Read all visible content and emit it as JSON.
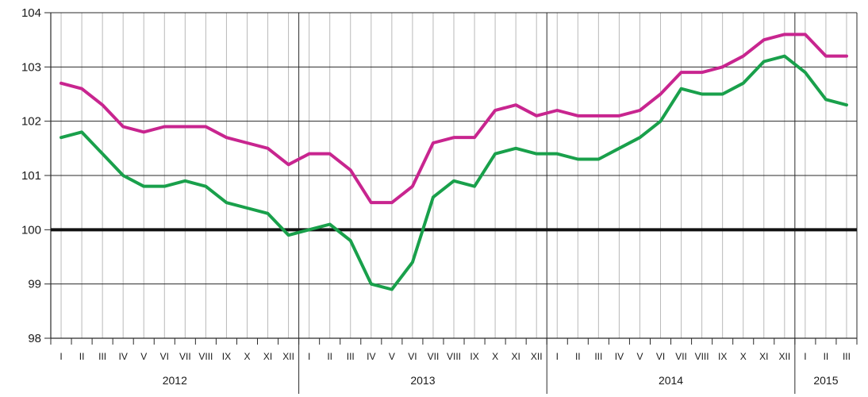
{
  "chart_data": {
    "type": "line",
    "title": "",
    "xlabel": "",
    "ylabel": "",
    "ylim": [
      98,
      104
    ],
    "yticks": [
      98,
      99,
      100,
      101,
      102,
      103,
      104
    ],
    "reference_line": 100,
    "grid": true,
    "x_month_labels": [
      "I",
      "II",
      "III",
      "IV",
      "V",
      "VI",
      "VII",
      "VIII",
      "IX",
      "X",
      "XI",
      "XII",
      "I",
      "II",
      "III",
      "IV",
      "V",
      "VI",
      "VII",
      "VIII",
      "IX",
      "X",
      "XI",
      "XII",
      "I",
      "II",
      "III",
      "IV",
      "V",
      "VI",
      "VII",
      "VIII",
      "IX",
      "X",
      "XI",
      "XII",
      "I",
      "II",
      "III"
    ],
    "x_year_groups": [
      {
        "label": "2012",
        "months": 12
      },
      {
        "label": "2013",
        "months": 12
      },
      {
        "label": "2014",
        "months": 12
      },
      {
        "label": "2015",
        "months": 3
      }
    ],
    "series": [
      {
        "color": "#c8258f",
        "values": [
          102.7,
          102.6,
          102.3,
          101.9,
          101.8,
          101.9,
          101.9,
          101.9,
          101.7,
          101.6,
          101.5,
          101.2,
          101.4,
          101.4,
          101.1,
          100.5,
          100.5,
          100.8,
          101.6,
          101.7,
          101.7,
          102.2,
          102.3,
          102.1,
          102.2,
          102.1,
          102.1,
          102.1,
          102.2,
          102.5,
          102.9,
          102.9,
          103.0,
          103.2,
          103.5,
          103.6,
          103.6,
          103.2,
          103.2
        ]
      },
      {
        "color": "#19a04b",
        "values": [
          101.7,
          101.8,
          101.4,
          101.0,
          100.8,
          100.8,
          100.9,
          100.8,
          100.5,
          100.4,
          100.3,
          99.9,
          100.0,
          100.1,
          99.8,
          99.0,
          98.9,
          99.4,
          100.6,
          100.9,
          100.8,
          101.4,
          101.5,
          101.4,
          101.4,
          101.3,
          101.3,
          101.5,
          101.7,
          102.0,
          102.6,
          102.5,
          102.5,
          102.7,
          103.1,
          103.2,
          102.9,
          102.4,
          102.3
        ]
      }
    ]
  }
}
